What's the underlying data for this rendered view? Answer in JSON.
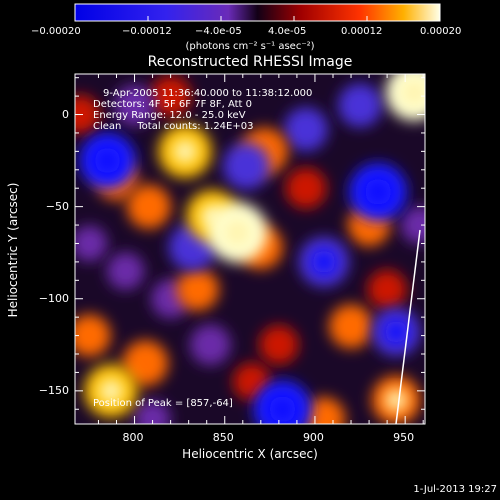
{
  "chart_data": {
    "type": "heatmap",
    "title": "Reconstructed RHESSI Image",
    "xlabel": "Heliocentric X (arcsec)",
    "ylabel": "Heliocentric Y (arcsec)",
    "xlim": [
      767,
      961
    ],
    "ylim": [
      -168,
      22
    ],
    "x_ticks": [
      800,
      850,
      900,
      950
    ],
    "y_ticks": [
      0,
      -50,
      -100,
      -150
    ],
    "colorbar": {
      "ticks": [
        "-0.00020",
        "-0.00012",
        "-4.0e-05",
        "4.0e-05",
        "0.00012",
        "0.00020"
      ],
      "range": [
        -0.0002,
        0.0002
      ],
      "units": "(photons cm⁻² s⁻¹ asec⁻²)"
    },
    "annotations": {
      "time": "9-Apr-2005 11:36:40.000 to 11:38:12.000",
      "detectors": "Detectors: 4F 5F 6F 7F 8F, Att 0",
      "energy": "Energy Range: 12.0 - 25.0 keV",
      "clean": "Clean     Total counts: 1.24E+03",
      "peak": "Position of Peak = [857,-64]"
    },
    "blobs": [
      {
        "x": 857,
        "y": -64,
        "v": 0.0002
      },
      {
        "x": 843,
        "y": -55,
        "v": 0.00015
      },
      {
        "x": 870,
        "y": -72,
        "v": 0.0001
      },
      {
        "x": 828,
        "y": -20,
        "v": 0.00016
      },
      {
        "x": 808,
        "y": -50,
        "v": 0.0001
      },
      {
        "x": 790,
        "y": -35,
        "v": 9e-05
      },
      {
        "x": 787,
        "y": -150,
        "v": 0.00016
      },
      {
        "x": 775,
        "y": -120,
        "v": 9e-05
      },
      {
        "x": 806,
        "y": -135,
        "v": 0.00011
      },
      {
        "x": 872,
        "y": -20,
        "v": 0.00012
      },
      {
        "x": 895,
        "y": -40,
        "v": 8e-05
      },
      {
        "x": 930,
        "y": -60,
        "v": 9e-05
      },
      {
        "x": 920,
        "y": -115,
        "v": 0.0001
      },
      {
        "x": 955,
        "y": 12,
        "v": 0.00018
      },
      {
        "x": 945,
        "y": -155,
        "v": 0.00013
      },
      {
        "x": 905,
        "y": -165,
        "v": 9e-05
      },
      {
        "x": 835,
        "y": -95,
        "v": 9e-05
      },
      {
        "x": 880,
        "y": -125,
        "v": 7e-05
      },
      {
        "x": 820,
        "y": 10,
        "v": 8e-05
      },
      {
        "x": 865,
        "y": -145,
        "v": 6e-05
      },
      {
        "x": 940,
        "y": -95,
        "v": 7e-05
      },
      {
        "x": 770,
        "y": 0,
        "v": 7e-05
      },
      {
        "x": 785,
        "y": -25,
        "v": -0.00018
      },
      {
        "x": 862,
        "y": -28,
        "v": -0.00012
      },
      {
        "x": 895,
        "y": -8,
        "v": -0.0001
      },
      {
        "x": 935,
        "y": -42,
        "v": -0.00019
      },
      {
        "x": 905,
        "y": -80,
        "v": -0.00014
      },
      {
        "x": 945,
        "y": -118,
        "v": -0.00013
      },
      {
        "x": 882,
        "y": -160,
        "v": -0.00019
      },
      {
        "x": 832,
        "y": -72,
        "v": -0.00012
      },
      {
        "x": 842,
        "y": -125,
        "v": -8e-05
      },
      {
        "x": 820,
        "y": -100,
        "v": -7e-05
      },
      {
        "x": 795,
        "y": -85,
        "v": -6e-05
      },
      {
        "x": 800,
        "y": 5,
        "v": -8e-05
      },
      {
        "x": 925,
        "y": 5,
        "v": -0.0001
      },
      {
        "x": 958,
        "y": -60,
        "v": -6e-05
      },
      {
        "x": 810,
        "y": -165,
        "v": -5e-05
      },
      {
        "x": 775,
        "y": -70,
        "v": -5e-05
      }
    ]
  },
  "footer": {
    "timestamp": "1-Jul-2013 19:27"
  }
}
